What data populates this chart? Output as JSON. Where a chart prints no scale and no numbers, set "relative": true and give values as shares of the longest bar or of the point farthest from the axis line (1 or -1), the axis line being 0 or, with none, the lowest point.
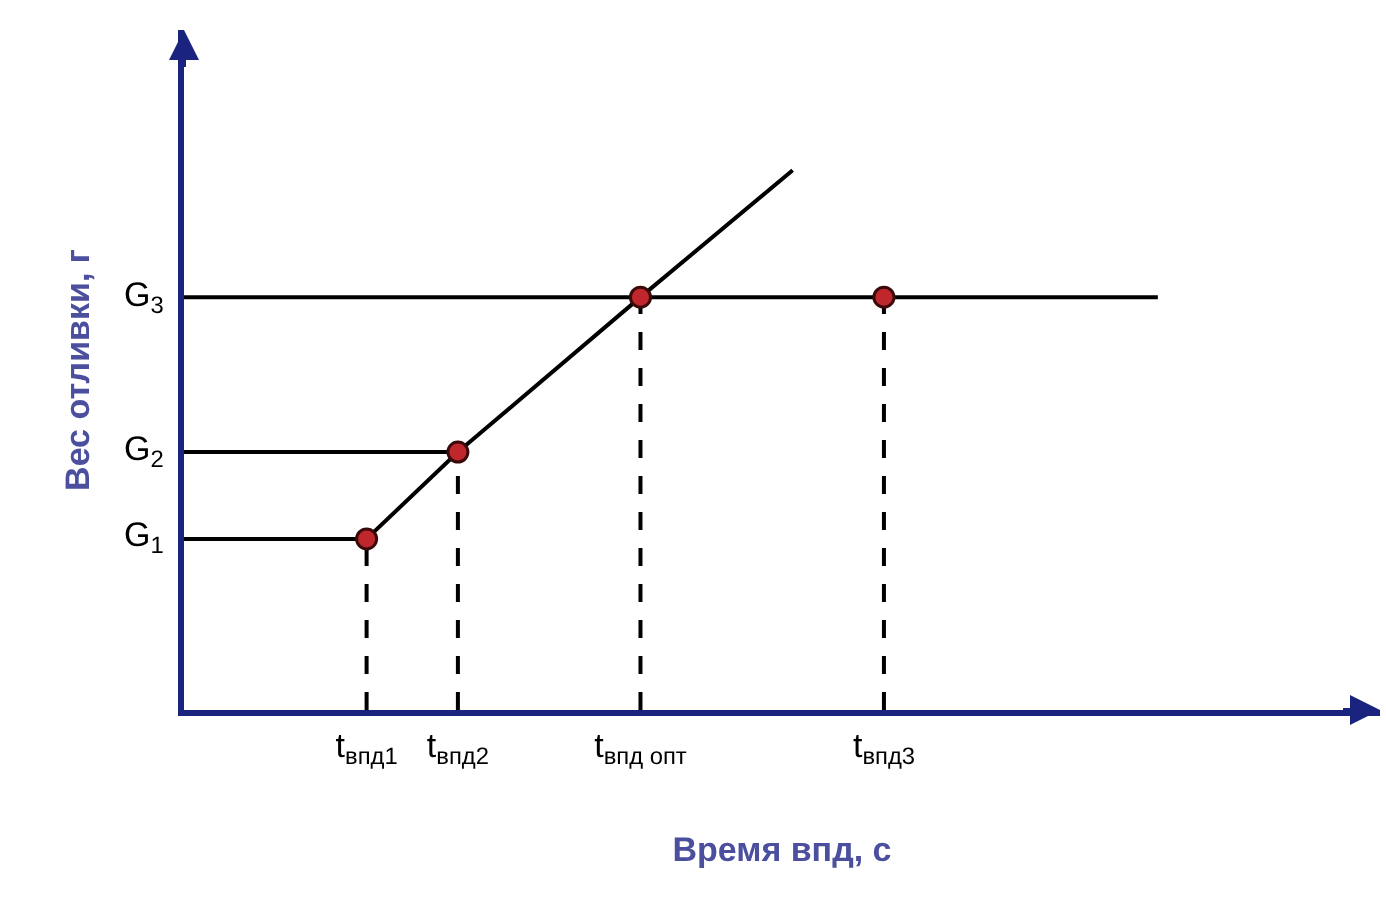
{
  "chart_data": {
    "type": "line",
    "relative": true,
    "xlabel": "Время впд, с",
    "ylabel": "Вес отливки, г",
    "grid": false,
    "legend": false,
    "marker": "none",
    "line_style": "solid",
    "categories": [
      null,
      null,
      null,
      null,
      null,
      null,
      "t$_{впд1}$",
      null,
      null,
      "t$_{впд2}$",
      null,
      null,
      null,
      null,
      null,
      "t$_{впд опт}$",
      null,
      null,
      null,
      null,
      null,
      null,
      null,
      "t$_{впд3}$",
      null,
      null,
      null,
      null,
      null,
      null,
      null,
      null,
      null,
      null,
      null,
      null,
      null,
      null,
      null,
      null
    ],
    "series": [
      {
        "color": "#000000",
        "values": [
          null,
          null,
          null,
          null,
          null,
          null,
          0.317,
          null,
          null,
          0.478,
          null,
          null,
          null,
          null,
          null,
          0.765,
          null,
          null,
          null,
          null,
          1,
          null,
          null,
          null,
          null,
          null,
          null,
          null,
          null,
          null,
          null,
          null,
          null,
          null,
          null,
          null,
          null,
          null,
          null,
          null
        ]
      },
      {
        "name": "G$_{1}$",
        "color": "#000000",
        "values": [
          0.317,
          null,
          null,
          null,
          null,
          null,
          0.317,
          null,
          null,
          null,
          null,
          null,
          null,
          null,
          null,
          null,
          null,
          null,
          null,
          null,
          null,
          null,
          null,
          null,
          null,
          null,
          null,
          null,
          null,
          null,
          null,
          null,
          null,
          null,
          null,
          null,
          null,
          null,
          null,
          null
        ]
      },
      {
        "name": "G$_{2}$",
        "color": "#000000",
        "values": [
          0.478,
          null,
          null,
          null,
          null,
          null,
          null,
          null,
          null,
          0.478,
          null,
          null,
          null,
          null,
          null,
          null,
          null,
          null,
          null,
          null,
          null,
          null,
          null,
          null,
          null,
          null,
          null,
          null,
          null,
          null,
          null,
          null,
          null,
          null,
          null,
          null,
          null,
          null,
          null,
          null
        ]
      },
      {
        "name": "G$_{3}$",
        "color": "#000000",
        "values": [
          0.765,
          null,
          null,
          null,
          null,
          null,
          null,
          null,
          null,
          null,
          null,
          null,
          null,
          null,
          null,
          null,
          null,
          null,
          null,
          null,
          null,
          null,
          null,
          null,
          null,
          null,
          null,
          null,
          null,
          null,
          null,
          null,
          0.765,
          null,
          null,
          null,
          null,
          null,
          null,
          null
        ]
      },
      {
        "type": "lollipop",
        "marker": "circle",
        "color": "#c0272d",
        "line_style": "dashed",
        "values": [
          null,
          null,
          null,
          null,
          null,
          null,
          0.317,
          null,
          null,
          0.478,
          null,
          null,
          null,
          null,
          null,
          0.765,
          null,
          null,
          null,
          null,
          null,
          null,
          null,
          0.765,
          null,
          null,
          null,
          null,
          null,
          null,
          null,
          null,
          null,
          null,
          null,
          null,
          null,
          null,
          null,
          null
        ]
      }
    ]
  }
}
